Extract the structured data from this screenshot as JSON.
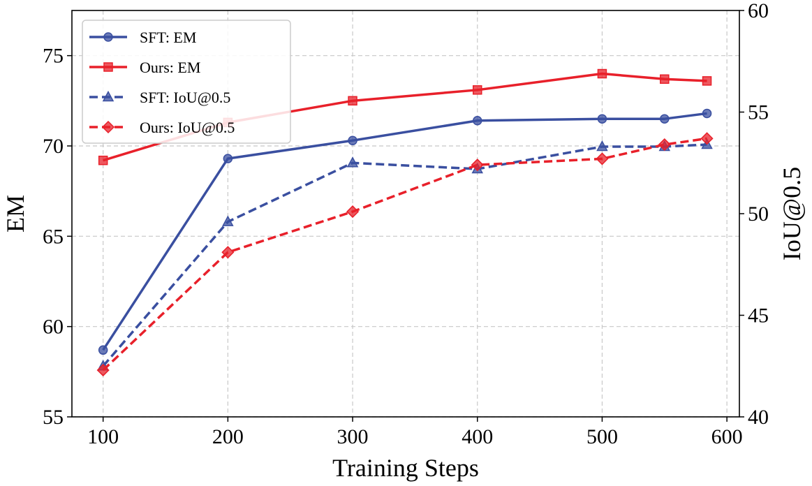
{
  "chart_data": {
    "type": "line",
    "xlabel": "Training Steps",
    "ylabel_left": "EM",
    "ylabel_right": "IoU@0.5",
    "xlim": [
      75,
      610
    ],
    "ylim_left": [
      55,
      77.5
    ],
    "ylim_right": [
      40,
      60
    ],
    "x_ticks": [
      100,
      200,
      300,
      400,
      500,
      600
    ],
    "y_left_ticks": [
      55,
      60,
      65,
      70,
      75
    ],
    "y_right_ticks": [
      40,
      45,
      50,
      55,
      60
    ],
    "grid": true,
    "legend_position": "top-left",
    "x": [
      100,
      200,
      300,
      400,
      500,
      550,
      584
    ],
    "series": [
      {
        "name": "SFT: EM",
        "axis": "left",
        "color": "#3a4fa0",
        "style": "solid",
        "marker": "circle",
        "values": [
          58.7,
          69.3,
          70.3,
          71.4,
          71.5,
          71.5,
          71.8
        ]
      },
      {
        "name": "Ours: EM",
        "axis": "left",
        "color": "#e8202a",
        "style": "solid",
        "marker": "square",
        "values": [
          69.2,
          71.3,
          72.5,
          73.1,
          74.0,
          73.7,
          73.6
        ]
      },
      {
        "name": "SFT: IoU@0.5",
        "axis": "right",
        "color": "#3a4fa0",
        "style": "dashed",
        "marker": "triangle",
        "values": [
          42.5,
          49.6,
          52.5,
          52.2,
          53.3,
          53.3,
          53.4
        ]
      },
      {
        "name": "Ours: IoU@0.5",
        "axis": "right",
        "color": "#e8202a",
        "style": "dashed",
        "marker": "diamond",
        "values": [
          42.3,
          48.1,
          50.1,
          52.4,
          52.7,
          53.4,
          53.7
        ]
      }
    ]
  }
}
